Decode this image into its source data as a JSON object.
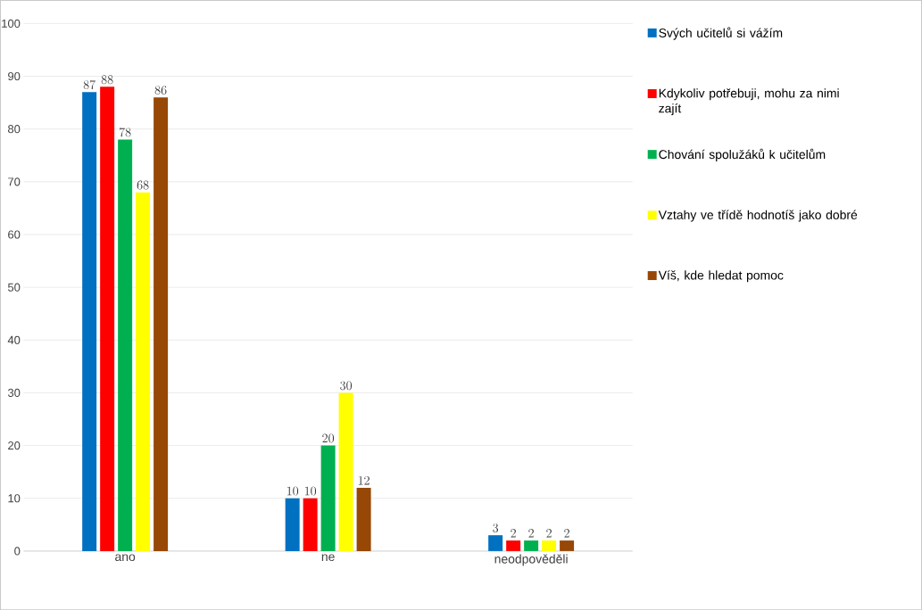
{
  "chart_data": {
    "type": "bar",
    "categories": [
      "ano",
      "ne",
      "neodpověděli"
    ],
    "series": [
      {
        "name": "Svých učitelů si vážím",
        "color": "#0070c0",
        "values": [
          87,
          10,
          3
        ]
      },
      {
        "name": "Kdykoliv potřebuji, mohu za nimi zajít",
        "color": "#ff0000",
        "values": [
          88,
          10,
          2
        ]
      },
      {
        "name": "Chování spolužáků k učitelům",
        "color": "#00b050",
        "values": [
          78,
          20,
          2
        ]
      },
      {
        "name": "Vztahy ve třídě hodnotíš jako dobré",
        "color": "#ffff00",
        "values": [
          68,
          30,
          2
        ]
      },
      {
        "name": "Víš, kde hledat pomoc",
        "color": "#974706",
        "values": [
          86,
          12,
          2
        ]
      }
    ],
    "ylim": [
      0,
      100
    ],
    "yticks": [
      0,
      10,
      20,
      30,
      40,
      50,
      60,
      70,
      80,
      90,
      100
    ],
    "grid": "y",
    "legend": "right",
    "data_labels": true
  }
}
